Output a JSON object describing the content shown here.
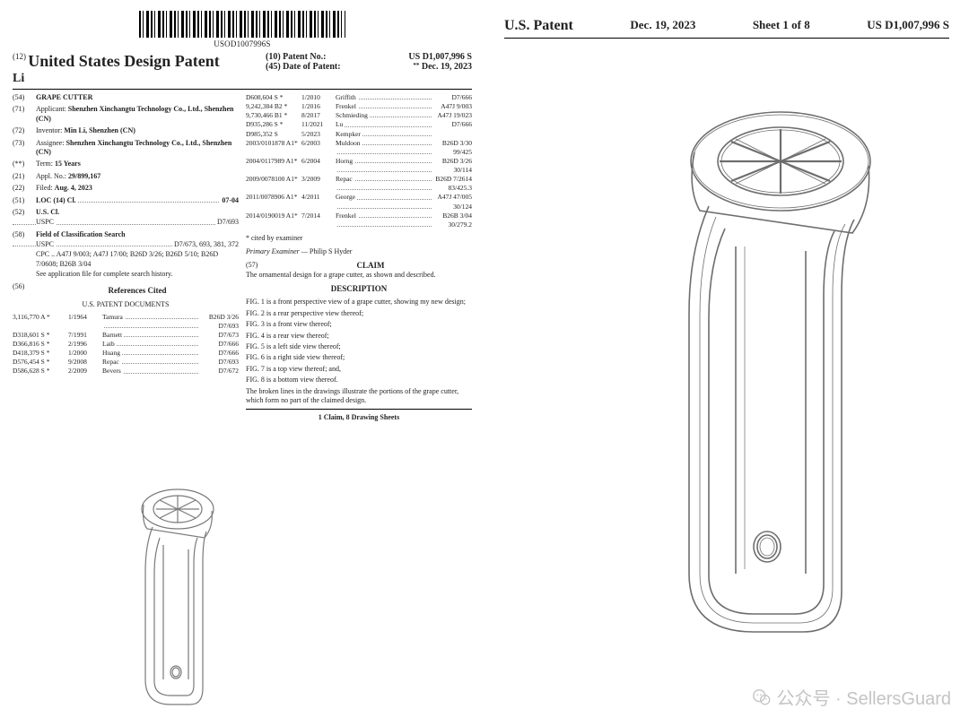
{
  "barcode_text": "USOD1007996S",
  "title_prefix": "(12)",
  "title": "United States Design Patent",
  "inventor_short": "Li",
  "patent_no_label": "(10) Patent No.:",
  "patent_no": "US D1,007,996 S",
  "date_label": "(45) Date of Patent:",
  "date_star": "**",
  "date": "Dec. 19, 2023",
  "f54": {
    "num": "(54)",
    "label": "GRAPE CUTTER"
  },
  "f71": {
    "num": "(71)",
    "label": "Applicant:",
    "val": "Shenzhen Xinchangtu Technology Co., Ltd., Shenzhen (CN)"
  },
  "f72": {
    "num": "(72)",
    "label": "Inventor:",
    "val": "Min Li, Shenzhen (CN)"
  },
  "f73": {
    "num": "(73)",
    "label": "Assignee:",
    "val": "Shenzhen Xinchangtu Technology Co., Ltd., Shenzhen (CN)"
  },
  "fterm": {
    "num": "(**)",
    "label": "Term:",
    "val": "15 Years"
  },
  "f21": {
    "num": "(21)",
    "label": "Appl. No.:",
    "val": "29/899,167"
  },
  "f22": {
    "num": "(22)",
    "label": "Filed:",
    "val": "Aug. 4, 2023"
  },
  "f51": {
    "num": "(51)",
    "label": "LOC (14) Cl.",
    "val": "07-04"
  },
  "f52": {
    "num": "(52)",
    "label": "U.S. Cl.",
    "sub": "USPC",
    "val": "D7/693"
  },
  "f58": {
    "num": "(58)",
    "label": "Field of Classification Search",
    "l1": "USPC",
    "v1": "D7/673, 693, 381, 372",
    "l2": "CPC .. A47J 9/003; A47J 17/00; B26D 3/26; B26D 5/10; B26D 7/0608; B26B 3/04",
    "note": "See application file for complete search history."
  },
  "f56": {
    "num": "(56)",
    "label": "References Cited"
  },
  "us_docs_title": "U.S. PATENT DOCUMENTS",
  "refs_left": [
    {
      "c1": "3,116,770 A *",
      "c2": "1/1964",
      "name": "Tamura",
      "cls": "B26D 3/26"
    },
    {
      "c1": "",
      "c2": "",
      "name": "",
      "cls": "D7/693"
    },
    {
      "c1": "D318,601 S *",
      "c2": "7/1991",
      "name": "Barnett",
      "cls": "D7/673"
    },
    {
      "c1": "D366,816 S *",
      "c2": "2/1996",
      "name": "Laib",
      "cls": "D7/666"
    },
    {
      "c1": "D418,379 S *",
      "c2": "1/2000",
      "name": "Huang",
      "cls": "D7/666"
    },
    {
      "c1": "D576,454 S *",
      "c2": "9/2008",
      "name": "Repac",
      "cls": "D7/693"
    },
    {
      "c1": "D586,628 S *",
      "c2": "2/2009",
      "name": "Bevers",
      "cls": "D7/672"
    }
  ],
  "refs_right": [
    {
      "c1": "D608,604 S *",
      "c2": "1/2010",
      "name": "Griffith",
      "cls": "D7/666"
    },
    {
      "c1": "9,242,384 B2 *",
      "c2": "1/2016",
      "name": "Frenkel",
      "cls": "A47J 9/003"
    },
    {
      "c1": "9,730,466 B1 *",
      "c2": "8/2017",
      "name": "Schmieding",
      "cls": "A47J 19/023"
    },
    {
      "c1": "D935,286 S *",
      "c2": "11/2021",
      "name": "Lu",
      "cls": "D7/666"
    },
    {
      "c1": "D985,352 S",
      "c2": "5/2023",
      "name": "Kempker",
      "cls": ""
    },
    {
      "c1": "2003/0101878 A1*",
      "c2": "6/2003",
      "name": "Muldoon",
      "cls": "B26D 3/30"
    },
    {
      "c1": "",
      "c2": "",
      "name": "",
      "cls": "99/425"
    },
    {
      "c1": "2004/0117989 A1*",
      "c2": "6/2004",
      "name": "Horng",
      "cls": "B26D 3/26"
    },
    {
      "c1": "",
      "c2": "",
      "name": "",
      "cls": "30/114"
    },
    {
      "c1": "2009/0078100 A1*",
      "c2": "3/2009",
      "name": "Repac",
      "cls": "B26D 7/2614"
    },
    {
      "c1": "",
      "c2": "",
      "name": "",
      "cls": "83/425.3"
    },
    {
      "c1": "2011/0078906 A1*",
      "c2": "4/2011",
      "name": "George",
      "cls": "A47J 47/005"
    },
    {
      "c1": "",
      "c2": "",
      "name": "",
      "cls": "30/124"
    },
    {
      "c1": "2014/0190019 A1*",
      "c2": "7/2014",
      "name": "Frenkel",
      "cls": "B26B 3/04"
    },
    {
      "c1": "",
      "c2": "",
      "name": "",
      "cls": "30/279.2"
    }
  ],
  "cited_note": "* cited by examiner",
  "examiner_label": "Primary Examiner —",
  "examiner": "Philip S Hyder",
  "claim_num": "(57)",
  "claim_label": "CLAIM",
  "claim_text": "The ornamental design for a grape cutter, as shown and described.",
  "desc_label": "DESCRIPTION",
  "figs": [
    "FIG. 1 is a front perspective view of a grape cutter, showing my new design;",
    "FIG. 2 is a rear perspective view thereof;",
    "FIG. 3 is a front view thereof;",
    "FIG. 4 is a rear view thereof;",
    "FIG. 5 is a left side view thereof;",
    "FIG. 6 is a right side view thereof;",
    "FIG. 7 is a top view thereof; and,",
    "FIG. 8 is a bottom view thereof."
  ],
  "broken_line": "The broken lines in the drawings illustrate the portions of the grape cutter, which form no part of the claimed design.",
  "claim_count": "1 Claim, 8 Drawing Sheets",
  "rp": {
    "t1": "U.S. Patent",
    "t2": "Dec. 19, 2023",
    "t3": "Sheet 1 of 8",
    "t4": "US D1,007,996 S"
  },
  "watermark": "公众号 · SellersGuard"
}
